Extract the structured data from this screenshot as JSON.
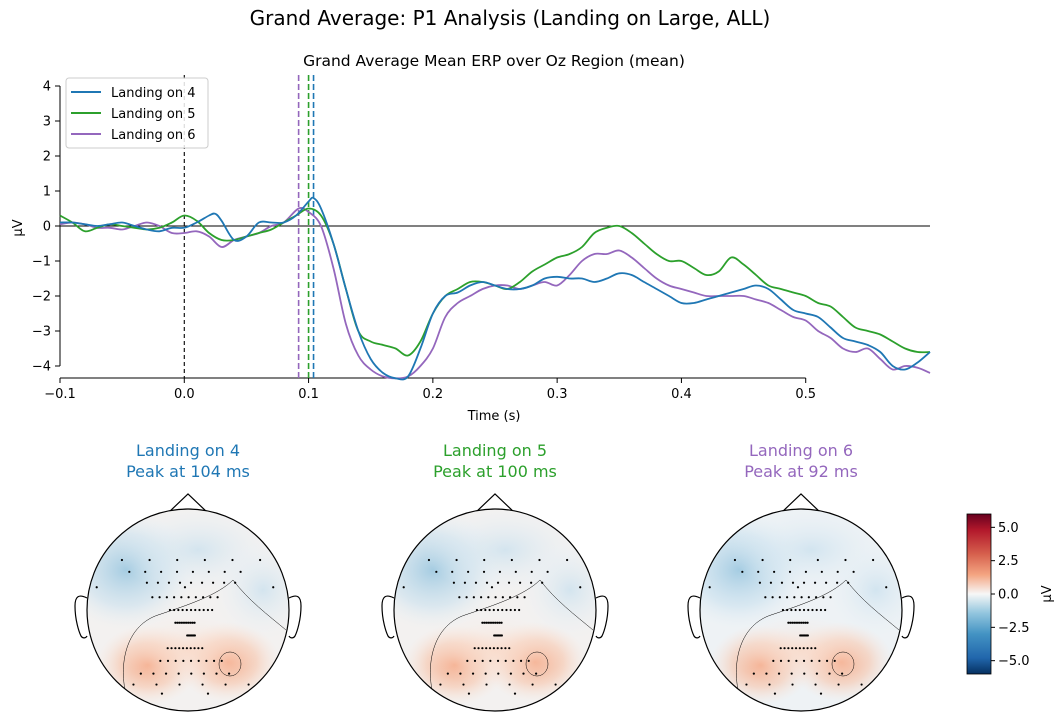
{
  "figure": {
    "suptitle": "Grand Average: P1 Analysis (Landing on Large, ALL)"
  },
  "colors": {
    "landing_4": "#1f77b4",
    "landing_5": "#2ca02c",
    "landing_6": "#9467bd"
  },
  "chart_data": [
    {
      "type": "line",
      "title": "Grand Average Mean ERP over Oz Region (mean)",
      "xlabel": "Time (s)",
      "ylabel": "µV",
      "xlim": [
        -0.1,
        0.6
      ],
      "ylim": [
        -4.35,
        4.0
      ],
      "x_ticks": [
        -0.1,
        0.0,
        0.1,
        0.2,
        0.3,
        0.4,
        0.5
      ],
      "x_tick_labels": [
        "−0.1",
        "0.0",
        "0.1",
        "0.2",
        "0.3",
        "0.4",
        "0.5"
      ],
      "y_ticks": [
        -4,
        -3,
        -2,
        -1,
        0,
        1,
        2,
        3,
        4
      ],
      "y_tick_labels": [
        "−4",
        "−3",
        "−2",
        "−1",
        "0",
        "1",
        "2",
        "3",
        "4"
      ],
      "legend_position": "top-left",
      "zero_lines": {
        "horizontal_y": 0,
        "vertical_x": 0.0
      },
      "peak_markers": [
        {
          "series": "Landing on 6",
          "x": 0.092
        },
        {
          "series": "Landing on 5",
          "x": 0.1
        },
        {
          "series": "Landing on 4",
          "x": 0.104
        }
      ],
      "series": [
        {
          "name": "Landing on 4",
          "color": "#1f77b4",
          "x": [
            -0.1,
            -0.09,
            -0.08,
            -0.07,
            -0.06,
            -0.05,
            -0.04,
            -0.03,
            -0.02,
            -0.01,
            0.0,
            0.01,
            0.02,
            0.025,
            0.03,
            0.04,
            0.05,
            0.06,
            0.07,
            0.08,
            0.09,
            0.1,
            0.104,
            0.11,
            0.12,
            0.13,
            0.14,
            0.15,
            0.16,
            0.17,
            0.18,
            0.19,
            0.2,
            0.21,
            0.22,
            0.23,
            0.24,
            0.25,
            0.26,
            0.27,
            0.28,
            0.29,
            0.3,
            0.31,
            0.32,
            0.33,
            0.34,
            0.35,
            0.36,
            0.37,
            0.38,
            0.39,
            0.4,
            0.41,
            0.42,
            0.43,
            0.44,
            0.45,
            0.46,
            0.47,
            0.48,
            0.49,
            0.5,
            0.51,
            0.52,
            0.53,
            0.54,
            0.55,
            0.56,
            0.57,
            0.58,
            0.59,
            0.6
          ],
          "values": [
            0.1,
            0.1,
            0.05,
            0.0,
            0.05,
            0.1,
            0.0,
            -0.1,
            -0.15,
            -0.05,
            -0.05,
            0.1,
            0.3,
            0.35,
            0.15,
            -0.4,
            -0.3,
            0.1,
            0.1,
            0.1,
            0.3,
            0.7,
            0.8,
            0.5,
            -0.5,
            -1.8,
            -3.0,
            -3.8,
            -4.2,
            -4.35,
            -4.3,
            -3.5,
            -2.5,
            -2.0,
            -1.9,
            -1.7,
            -1.6,
            -1.7,
            -1.8,
            -1.8,
            -1.7,
            -1.5,
            -1.45,
            -1.5,
            -1.5,
            -1.6,
            -1.5,
            -1.35,
            -1.4,
            -1.6,
            -1.8,
            -2.0,
            -2.2,
            -2.2,
            -2.1,
            -2.0,
            -1.9,
            -1.8,
            -1.7,
            -1.8,
            -2.1,
            -2.4,
            -2.5,
            -2.6,
            -2.9,
            -3.2,
            -3.3,
            -3.4,
            -3.6,
            -4.0,
            -4.1,
            -3.9,
            -3.6
          ]
        },
        {
          "name": "Landing on 5",
          "color": "#2ca02c",
          "x": [
            -0.1,
            -0.09,
            -0.08,
            -0.07,
            -0.06,
            -0.05,
            -0.04,
            -0.03,
            -0.02,
            -0.01,
            0.0,
            0.01,
            0.02,
            0.03,
            0.04,
            0.05,
            0.06,
            0.07,
            0.08,
            0.09,
            0.1,
            0.11,
            0.12,
            0.13,
            0.14,
            0.15,
            0.16,
            0.17,
            0.18,
            0.19,
            0.2,
            0.21,
            0.22,
            0.23,
            0.24,
            0.25,
            0.26,
            0.27,
            0.28,
            0.29,
            0.3,
            0.31,
            0.32,
            0.33,
            0.34,
            0.35,
            0.36,
            0.37,
            0.38,
            0.39,
            0.4,
            0.41,
            0.42,
            0.43,
            0.44,
            0.45,
            0.46,
            0.47,
            0.48,
            0.49,
            0.5,
            0.51,
            0.52,
            0.53,
            0.54,
            0.55,
            0.56,
            0.57,
            0.58,
            0.59,
            0.6
          ],
          "values": [
            0.3,
            0.1,
            -0.15,
            -0.05,
            0.05,
            0.0,
            -0.05,
            -0.1,
            -0.05,
            0.1,
            0.3,
            0.15,
            -0.2,
            -0.4,
            -0.4,
            -0.3,
            -0.2,
            -0.1,
            0.1,
            0.3,
            0.5,
            0.3,
            -0.5,
            -1.8,
            -3.0,
            -3.3,
            -3.4,
            -3.5,
            -3.7,
            -3.3,
            -2.5,
            -2.0,
            -1.8,
            -1.6,
            -1.6,
            -1.7,
            -1.8,
            -1.6,
            -1.3,
            -1.1,
            -0.9,
            -0.8,
            -0.6,
            -0.2,
            -0.05,
            0.0,
            -0.2,
            -0.5,
            -0.8,
            -1.0,
            -1.0,
            -1.2,
            -1.4,
            -1.3,
            -0.9,
            -1.1,
            -1.4,
            -1.7,
            -1.8,
            -1.9,
            -2.0,
            -2.2,
            -2.3,
            -2.6,
            -2.9,
            -3.0,
            -3.1,
            -3.3,
            -3.5,
            -3.6,
            -3.6
          ]
        },
        {
          "name": "Landing on 6",
          "color": "#9467bd",
          "x": [
            -0.1,
            -0.09,
            -0.08,
            -0.07,
            -0.06,
            -0.05,
            -0.04,
            -0.03,
            -0.02,
            -0.01,
            0.0,
            0.01,
            0.02,
            0.03,
            0.04,
            0.05,
            0.06,
            0.07,
            0.08,
            0.092,
            0.1,
            0.11,
            0.12,
            0.13,
            0.14,
            0.15,
            0.16,
            0.17,
            0.18,
            0.19,
            0.2,
            0.21,
            0.22,
            0.23,
            0.24,
            0.25,
            0.26,
            0.27,
            0.28,
            0.29,
            0.3,
            0.31,
            0.32,
            0.33,
            0.34,
            0.35,
            0.36,
            0.37,
            0.38,
            0.39,
            0.4,
            0.41,
            0.42,
            0.43,
            0.44,
            0.45,
            0.46,
            0.47,
            0.48,
            0.49,
            0.5,
            0.51,
            0.52,
            0.53,
            0.54,
            0.55,
            0.56,
            0.57,
            0.58,
            0.59,
            0.6
          ],
          "values": [
            0.05,
            0.1,
            0.05,
            -0.05,
            -0.05,
            -0.1,
            0.0,
            0.1,
            0.0,
            -0.2,
            -0.2,
            -0.15,
            -0.3,
            -0.6,
            -0.4,
            -0.3,
            -0.2,
            0.0,
            0.1,
            0.5,
            0.4,
            0.0,
            -1.2,
            -2.8,
            -3.7,
            -4.1,
            -4.3,
            -4.35,
            -4.3,
            -4.0,
            -3.5,
            -2.6,
            -2.2,
            -2.0,
            -1.8,
            -1.7,
            -1.7,
            -1.8,
            -1.7,
            -1.6,
            -1.7,
            -1.4,
            -1.0,
            -0.8,
            -0.8,
            -0.7,
            -0.9,
            -1.2,
            -1.5,
            -1.7,
            -1.8,
            -1.9,
            -2.0,
            -2.0,
            -2.0,
            -2.0,
            -2.1,
            -2.2,
            -2.4,
            -2.6,
            -2.7,
            -3.0,
            -3.2,
            -3.5,
            -3.6,
            -3.5,
            -3.8,
            -4.1,
            -4.0,
            -4.05,
            -4.2
          ]
        }
      ]
    },
    {
      "type": "topomap",
      "panels": [
        {
          "label": "Landing on 4",
          "peak_label": "Peak at 104 ms",
          "color": "#1f77b4"
        },
        {
          "label": "Landing on 5",
          "peak_label": "Peak at 100 ms",
          "color": "#2ca02c"
        },
        {
          "label": "Landing on 6",
          "peak_label": "Peak at 92 ms",
          "color": "#9467bd"
        }
      ],
      "colorbar": {
        "label": "µV",
        "range": [
          -6.0,
          6.0
        ],
        "ticks": [
          5.0,
          2.5,
          0.0,
          -2.5,
          -5.0
        ],
        "tick_labels": [
          "5.0",
          "2.5",
          "0.0",
          "−2.5",
          "−5.0"
        ]
      }
    }
  ]
}
